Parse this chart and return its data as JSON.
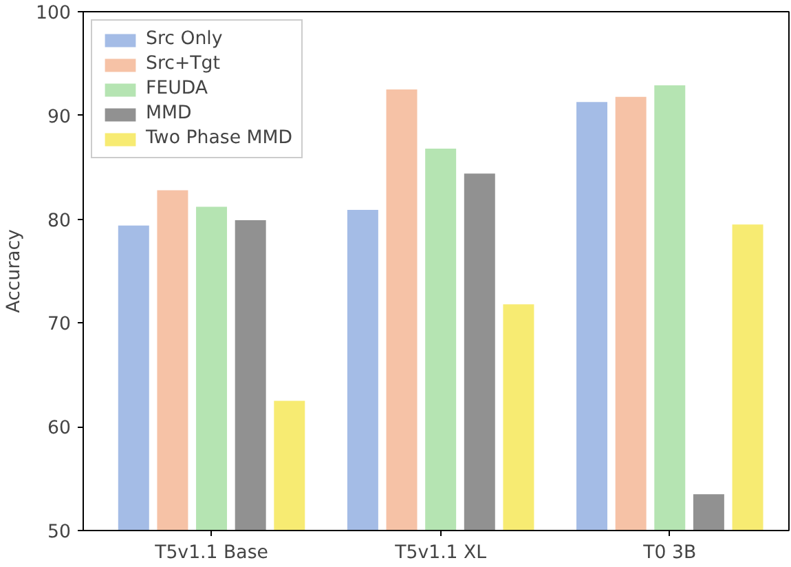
{
  "chart_data": {
    "type": "bar",
    "ylabel": "Accuracy",
    "categories": [
      "T5v1.1 Base",
      "T5v1.1 XL",
      "T0 3B"
    ],
    "series": [
      {
        "name": "Src Only",
        "color": "#a4bce6",
        "values": [
          79.4,
          80.9,
          91.3
        ]
      },
      {
        "name": "Src+Tgt",
        "color": "#f6c2a6",
        "values": [
          82.8,
          92.5,
          91.8
        ]
      },
      {
        "name": "FEUDA",
        "color": "#b5e4b2",
        "values": [
          81.2,
          86.8,
          92.9
        ]
      },
      {
        "name": "MMD",
        "color": "#919191",
        "values": [
          79.9,
          84.4,
          53.5
        ]
      },
      {
        "name": "Two Phase MMD",
        "color": "#f7eb72",
        "values": [
          62.5,
          71.8,
          79.5
        ]
      }
    ],
    "ylim": [
      50,
      100
    ],
    "yticks": [
      50,
      60,
      70,
      80,
      90,
      100
    ],
    "grid": false,
    "legend": "top left"
  }
}
